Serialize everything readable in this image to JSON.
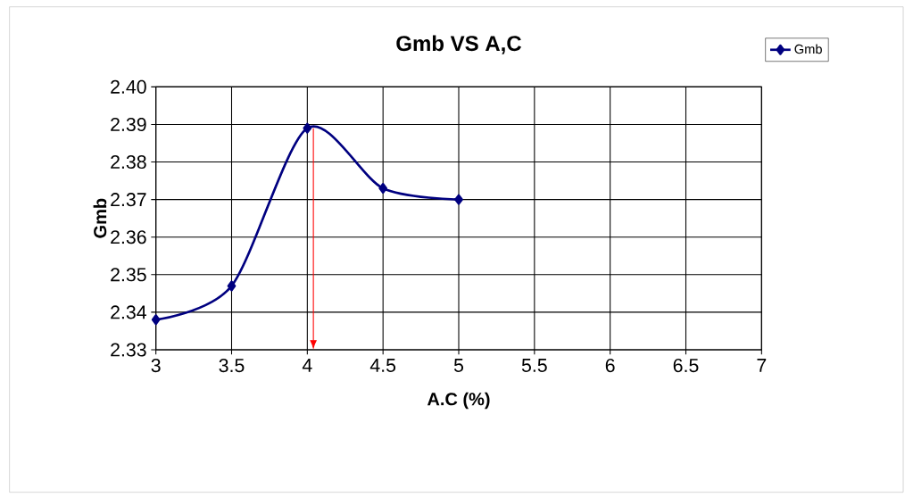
{
  "chart_data": {
    "type": "line",
    "title": "Gmb VS A,C",
    "xlabel": "A.C (%)",
    "ylabel": "Gmb",
    "x": [
      3,
      3.5,
      4,
      4.5,
      5
    ],
    "series": [
      {
        "name": "Gmb",
        "color": "#000080",
        "values": [
          2.338,
          2.347,
          2.389,
          2.373,
          2.37
        ]
      }
    ],
    "xlim": [
      3,
      7
    ],
    "xticks": [
      3,
      3.5,
      4,
      4.5,
      5,
      5.5,
      6,
      6.5,
      7
    ],
    "ylim": [
      2.33,
      2.4
    ],
    "yticks": [
      {
        "value": 2.33,
        "label": "2.33"
      },
      {
        "value": 2.34,
        "label": "2.34"
      },
      {
        "value": 2.35,
        "label": "2.35"
      },
      {
        "value": 2.36,
        "label": "2.36"
      },
      {
        "value": 2.37,
        "label": "2.37"
      },
      {
        "value": 2.38,
        "label": "2.38"
      },
      {
        "value": 2.39,
        "label": "2.39"
      },
      {
        "value": 2.4,
        "label": "2.40"
      }
    ],
    "ref_lines": [
      {
        "axis": "x",
        "value": 4.04,
        "color": "#ff0000"
      }
    ],
    "grid": true,
    "legend": "top right",
    "marker": "diamond",
    "line_style": "solid"
  }
}
